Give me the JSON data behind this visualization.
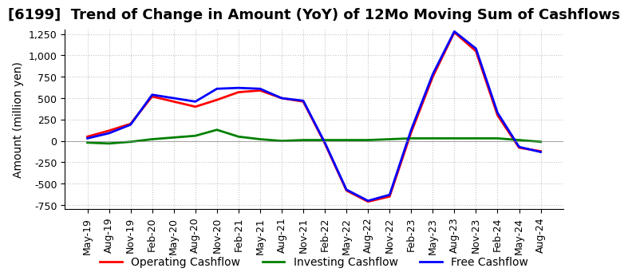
{
  "title": "[6199]  Trend of Change in Amount (YoY) of 12Mo Moving Sum of Cashflows",
  "ylabel": "Amount (million yen)",
  "x_labels": [
    "May-19",
    "Aug-19",
    "Nov-19",
    "Feb-20",
    "May-20",
    "Aug-20",
    "Nov-20",
    "Feb-21",
    "May-21",
    "Aug-21",
    "Nov-21",
    "Feb-22",
    "May-22",
    "Aug-22",
    "Nov-22",
    "Feb-23",
    "May-23",
    "Aug-23",
    "Nov-23",
    "Feb-24",
    "May-24",
    "Aug-24"
  ],
  "operating_cashflow": [
    50,
    120,
    200,
    520,
    460,
    400,
    480,
    570,
    590,
    500,
    460,
    -30,
    -580,
    -710,
    -650,
    100,
    750,
    1270,
    1050,
    300,
    -80,
    -120
  ],
  "investing_cashflow": [
    -20,
    -30,
    -10,
    20,
    40,
    60,
    130,
    50,
    20,
    0,
    10,
    10,
    10,
    10,
    20,
    30,
    30,
    30,
    30,
    30,
    10,
    -10
  ],
  "free_cashflow": [
    30,
    90,
    190,
    540,
    500,
    460,
    610,
    620,
    610,
    500,
    470,
    -20,
    -570,
    -700,
    -630,
    130,
    780,
    1280,
    1080,
    330,
    -70,
    -130
  ],
  "ylim": [
    -750,
    1250
  ],
  "yticks": [
    -750,
    -500,
    -250,
    0,
    250,
    500,
    750,
    1000,
    1250
  ],
  "operating_color": "#FF0000",
  "investing_color": "#008000",
  "free_color": "#0000FF",
  "bg_color": "#FFFFFF",
  "grid_color": "#CCCCCC",
  "title_fontsize": 13,
  "label_fontsize": 10,
  "tick_fontsize": 9
}
